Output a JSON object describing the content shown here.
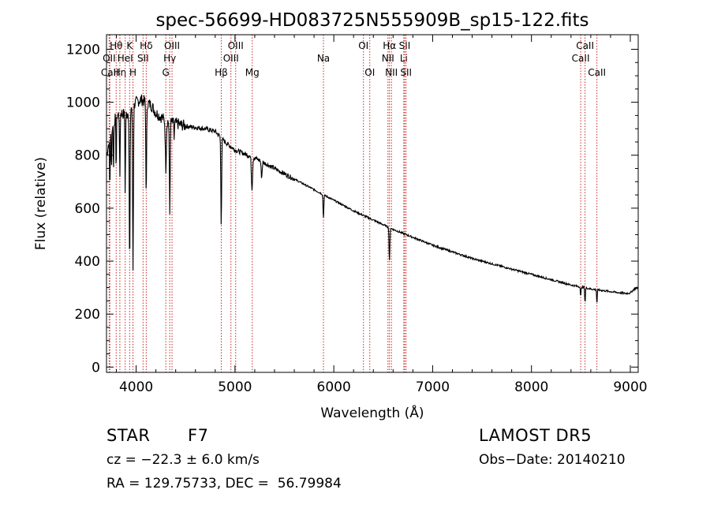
{
  "chart_data": {
    "type": "line",
    "title": "spec-56699-HD083725N555909B_sp15-122.fits",
    "xlabel": "Wavelength (Å)",
    "ylabel": "Flux (relative)",
    "xlim": [
      3700,
      9080
    ],
    "ylim": [
      -20,
      1255
    ],
    "x_ticks": [
      4000,
      5000,
      6000,
      7000,
      8000,
      9000
    ],
    "y_ticks": [
      0,
      200,
      400,
      600,
      800,
      1000,
      1200
    ],
    "x_tick_labels": [
      "4000",
      "5000",
      "6000",
      "7000",
      "8000",
      "9000"
    ],
    "y_tick_labels": [
      "0",
      "200",
      "400",
      "600",
      "800",
      "1000",
      "1200"
    ],
    "grid": false,
    "line_color": "#000000",
    "marker_color": "#cc2222",
    "series": [
      {
        "continuum": [
          [
            3700,
            800
          ],
          [
            3750,
            900
          ],
          [
            3800,
            950
          ],
          [
            3850,
            960
          ],
          [
            3900,
            950
          ],
          [
            3950,
            980
          ],
          [
            4000,
            1000
          ],
          [
            4050,
            1010
          ],
          [
            4100,
            1000
          ],
          [
            4150,
            990
          ],
          [
            4200,
            960
          ],
          [
            4300,
            930
          ],
          [
            4400,
            920
          ],
          [
            4500,
            910
          ],
          [
            4600,
            905
          ],
          [
            4700,
            900
          ],
          [
            4800,
            890
          ],
          [
            4900,
            850
          ],
          [
            5000,
            820
          ],
          [
            5200,
            790
          ],
          [
            5400,
            750
          ],
          [
            5600,
            710
          ],
          [
            5800,
            670
          ],
          [
            6000,
            630
          ],
          [
            6200,
            590
          ],
          [
            6400,
            555
          ],
          [
            6600,
            520
          ],
          [
            6800,
            490
          ],
          [
            7000,
            460
          ],
          [
            7200,
            435
          ],
          [
            7400,
            410
          ],
          [
            7600,
            390
          ],
          [
            7800,
            370
          ],
          [
            8000,
            350
          ],
          [
            8200,
            330
          ],
          [
            8400,
            310
          ],
          [
            8600,
            295
          ],
          [
            8800,
            285
          ],
          [
            8950,
            278
          ],
          [
            9000,
            280
          ],
          [
            9040,
            295
          ],
          [
            9080,
            300
          ]
        ],
        "absorption_lines": [
          [
            3734,
            200,
            3
          ],
          [
            3750,
            150,
            3
          ],
          [
            3771,
            180,
            3
          ],
          [
            3798,
            200,
            3
          ],
          [
            3835,
            250,
            3
          ],
          [
            3889,
            300,
            3
          ],
          [
            3934,
            600,
            4
          ],
          [
            3968,
            620,
            4
          ],
          [
            4102,
            350,
            4
          ],
          [
            4300,
            180,
            5
          ],
          [
            4340,
            350,
            4
          ],
          [
            4384,
            60,
            3
          ],
          [
            4861,
            330,
            4
          ],
          [
            5172,
            120,
            6
          ],
          [
            5270,
            60,
            5
          ],
          [
            5895,
            90,
            4
          ],
          [
            6563,
            130,
            4
          ],
          [
            8498,
            40,
            3
          ],
          [
            8542,
            60,
            3
          ],
          [
            8662,
            55,
            3
          ]
        ],
        "noise_amplitude": 18
      }
    ],
    "line_markers": [
      {
        "label": "CaII",
        "x": 3734,
        "row": 3
      },
      {
        "label": "Hθ",
        "x": 3798,
        "row": 1
      },
      {
        "label": "OII",
        "x": 3727,
        "row": 2
      },
      {
        "label": "Hη",
        "x": 3835,
        "row": 3
      },
      {
        "label": "HeI",
        "x": 3889,
        "row": 2
      },
      {
        "label": "K",
        "x": 3934,
        "row": 1
      },
      {
        "label": "H",
        "x": 3968,
        "row": 3
      },
      {
        "label": "SII",
        "x": 4070,
        "row": 2
      },
      {
        "label": "Hδ",
        "x": 4102,
        "row": 1
      },
      {
        "label": "G",
        "x": 4300,
        "row": 3
      },
      {
        "label": "Hγ",
        "x": 4340,
        "row": 2
      },
      {
        "label": "OIII",
        "x": 4363,
        "row": 1
      },
      {
        "label": "Hβ",
        "x": 4861,
        "row": 3
      },
      {
        "label": "OIII",
        "x": 4959,
        "row": 2
      },
      {
        "label": "OIII",
        "x": 5007,
        "row": 1
      },
      {
        "label": "Mg",
        "x": 5175,
        "row": 3
      },
      {
        "label": "Na",
        "x": 5895,
        "row": 2
      },
      {
        "label": "OI",
        "x": 6300,
        "row": 1
      },
      {
        "label": "OI",
        "x": 6364,
        "row": 3
      },
      {
        "label": "NII",
        "x": 6548,
        "row": 2
      },
      {
        "label": "Hα",
        "x": 6563,
        "row": 1
      },
      {
        "label": "NII",
        "x": 6583,
        "row": 3
      },
      {
        "label": "SII",
        "x": 6717,
        "row": 1
      },
      {
        "label": "Li",
        "x": 6708,
        "row": 2
      },
      {
        "label": "SII",
        "x": 6731,
        "row": 3
      },
      {
        "label": "CaII",
        "x": 8498,
        "row": 2
      },
      {
        "label": "CaII",
        "x": 8542,
        "row": 1
      },
      {
        "label": "CaII",
        "x": 8662,
        "row": 3
      }
    ]
  },
  "info": {
    "object_type": "STAR",
    "subclass": "F7",
    "survey": "LAMOST DR5",
    "cz": "cz = −22.3 ± 6.0 km/s",
    "obs_date": "Obs−Date: 20140210",
    "coords": "RA = 129.75733, DEC =  56.79984"
  }
}
